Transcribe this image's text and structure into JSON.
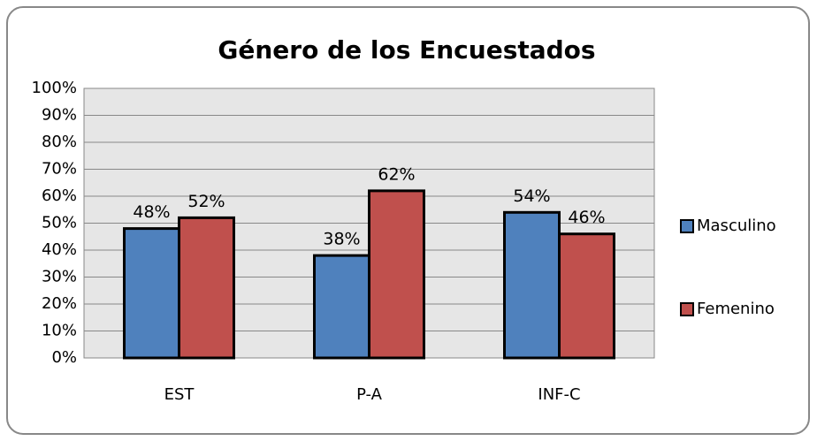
{
  "chart_data": {
    "type": "bar",
    "title": "Género de los Encuestados",
    "categories": [
      "EST",
      "P-A",
      "INF-C"
    ],
    "series": [
      {
        "name": "Masculino",
        "color": "#4f81bd",
        "values": [
          48,
          38,
          54
        ],
        "value_labels": [
          "48%",
          "38%",
          "54%"
        ]
      },
      {
        "name": "Femenino",
        "color": "#c0504d",
        "values": [
          52,
          62,
          46
        ],
        "value_labels": [
          "52%",
          "62%",
          "46%"
        ]
      }
    ],
    "ylim": [
      0,
      100
    ],
    "yticks": [
      {
        "value": 0,
        "label": "0%"
      },
      {
        "value": 10,
        "label": "10%"
      },
      {
        "value": 20,
        "label": "20%"
      },
      {
        "value": 30,
        "label": "30%"
      },
      {
        "value": 40,
        "label": "40%"
      },
      {
        "value": 50,
        "label": "50%"
      },
      {
        "value": 60,
        "label": "60%"
      },
      {
        "value": 70,
        "label": "70%"
      },
      {
        "value": 80,
        "label": "80%"
      },
      {
        "value": 90,
        "label": "90%"
      },
      {
        "value": 100,
        "label": "100%"
      }
    ],
    "grid": true,
    "legend": "right"
  }
}
